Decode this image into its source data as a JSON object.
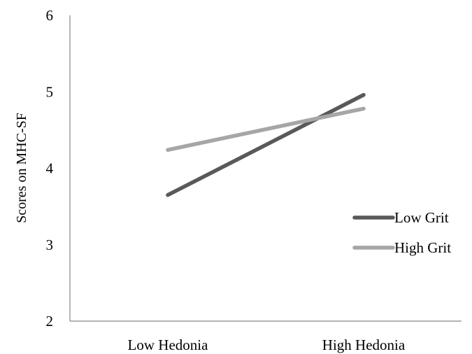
{
  "chart_data": {
    "type": "line",
    "title": "",
    "xlabel": "",
    "ylabel": "Scores on MHC-SF",
    "categories": [
      "Low Hedonia",
      "High Hedonia"
    ],
    "ylim": [
      2,
      6
    ],
    "yticks": [
      "2",
      "3",
      "4",
      "5",
      "6"
    ],
    "grid": false,
    "legend_position": "right",
    "series": [
      {
        "name": "Low Grit",
        "values": [
          3.65,
          4.96
        ],
        "color": "#595959"
      },
      {
        "name": "High Grit",
        "values": [
          4.24,
          4.78
        ],
        "color": "#a6a6a6"
      }
    ]
  }
}
